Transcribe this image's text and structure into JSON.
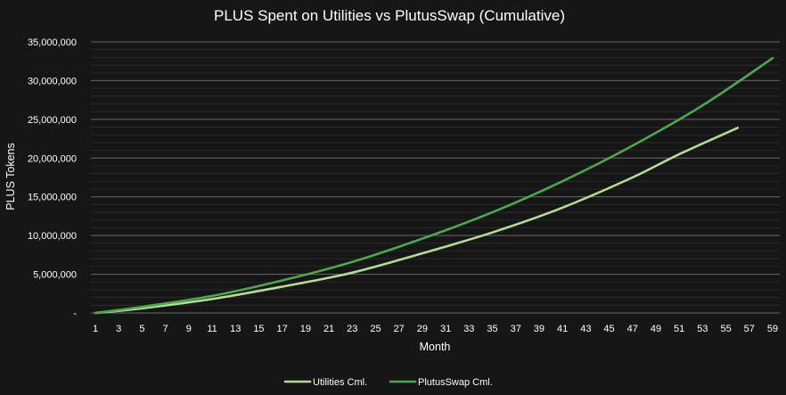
{
  "chart_data": {
    "type": "line",
    "title": "PLUS Spent on Utilities vs PlutusSwap (Cumulative)",
    "xlabel": "Month",
    "ylabel": "PLUS Tokens",
    "xlim": [
      1,
      59
    ],
    "ylim": [
      0,
      35000000
    ],
    "x_ticks": [
      1,
      3,
      5,
      7,
      9,
      11,
      13,
      15,
      17,
      19,
      21,
      23,
      25,
      27,
      29,
      31,
      33,
      35,
      37,
      39,
      41,
      43,
      45,
      47,
      49,
      51,
      53,
      55,
      57,
      59
    ],
    "y_ticks": [
      {
        "value": 0,
        "label": "-"
      },
      {
        "value": 5000000,
        "label": "5,000,000"
      },
      {
        "value": 10000000,
        "label": "10,000,000"
      },
      {
        "value": 15000000,
        "label": "15,000,000"
      },
      {
        "value": 20000000,
        "label": "20,000,000"
      },
      {
        "value": 25000000,
        "label": "25,000,000"
      },
      {
        "value": 30000000,
        "label": "30,000,000"
      },
      {
        "value": 35000000,
        "label": "35,000,000"
      }
    ],
    "grid": true,
    "legend_position": "bottom",
    "series": [
      {
        "name": "Utilities Cml.",
        "color": "#b5dc96",
        "x": [
          1,
          5,
          11,
          17,
          23,
          29,
          35,
          41,
          47,
          51,
          56
        ],
        "values": [
          0,
          600000,
          1800000,
          3400000,
          5200000,
          7700000,
          10400000,
          13600000,
          17500000,
          20500000,
          23900000
        ]
      },
      {
        "name": "PlutusSwap Cml.",
        "color": "#4ea650",
        "x": [
          1,
          5,
          11,
          17,
          23,
          29,
          35,
          41,
          47,
          53,
          59
        ],
        "values": [
          0,
          800000,
          2200000,
          4200000,
          6600000,
          9600000,
          13000000,
          17000000,
          21600000,
          26800000,
          32900000
        ]
      }
    ]
  }
}
